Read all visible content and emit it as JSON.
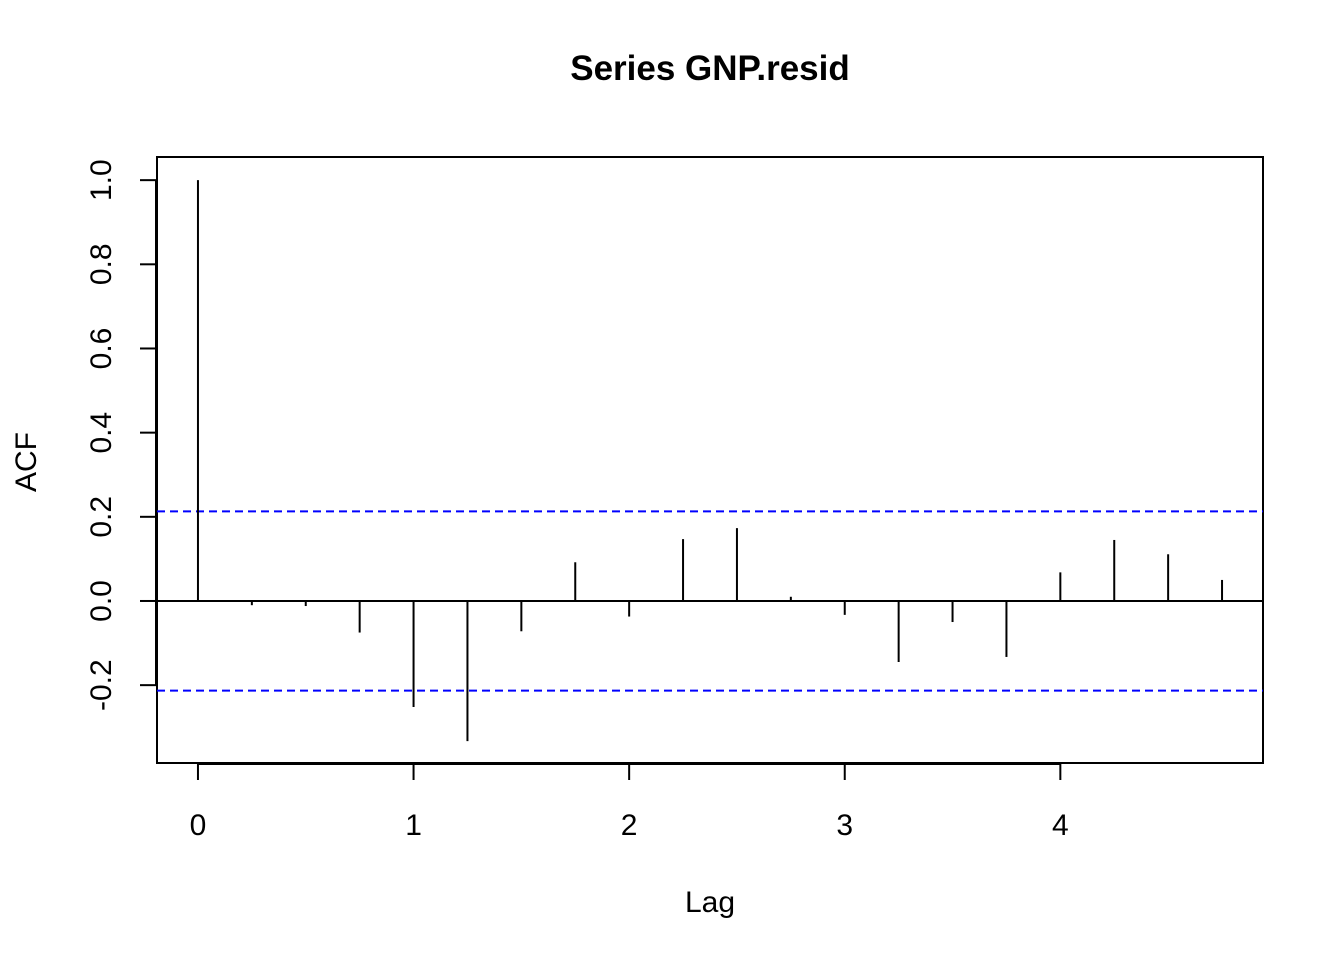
{
  "chart_data": {
    "type": "bar",
    "title": "Series  GNP.resid",
    "xlabel": "Lag",
    "ylabel": "ACF",
    "xlim": [
      -0.19,
      4.94
    ],
    "ylim": [
      -0.385,
      1.055
    ],
    "x_ticks": [
      0,
      1,
      2,
      3,
      4
    ],
    "x_tick_labels": [
      "0",
      "1",
      "2",
      "3",
      "4"
    ],
    "y_ticks": [
      -0.2,
      0.0,
      0.2,
      0.4,
      0.6,
      0.8,
      1.0
    ],
    "y_tick_labels": [
      "-0.2",
      "0.0",
      "0.2",
      "0.4",
      "0.6",
      "0.8",
      "1.0"
    ],
    "grid": false,
    "lag": [
      0,
      0.25,
      0.5,
      0.75,
      1.0,
      1.25,
      1.5,
      1.75,
      2.0,
      2.25,
      2.5,
      2.75,
      3.0,
      3.25,
      3.5,
      3.75,
      4.0,
      4.25,
      4.5,
      4.75
    ],
    "acf": [
      1.0,
      -0.01,
      -0.012,
      -0.075,
      -0.252,
      -0.333,
      -0.072,
      0.092,
      -0.037,
      0.147,
      0.173,
      0.01,
      -0.033,
      -0.145,
      -0.05,
      -0.133,
      0.068,
      0.145,
      0.111,
      0.05
    ],
    "conf_limit": 0.213,
    "colors": {
      "bars": "#000000",
      "conf_line": "#0000ff",
      "zero_line": "#000000"
    }
  }
}
